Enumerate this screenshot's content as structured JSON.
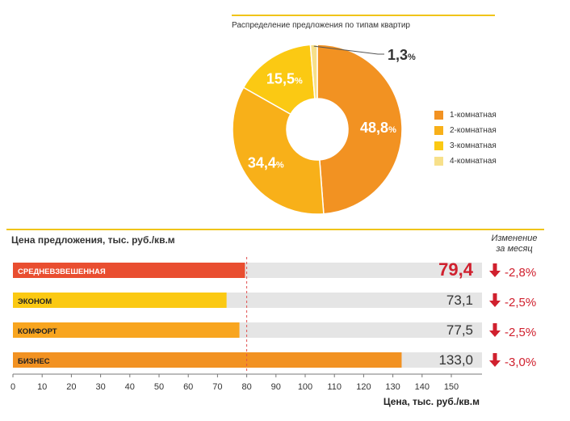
{
  "colors": {
    "accent_rule": "#f0c419",
    "track": "#e5e5e5",
    "down_arrow": "#d0202e",
    "highlight_value": "#d0202e",
    "value_text": "#333333"
  },
  "pie_section": {
    "title": "Распределение предложения по типам квартир",
    "percent_sign": "%"
  },
  "bar_section": {
    "title": "Цена предложения, тыс. руб./кв.м",
    "change_header_line1": "Изменение",
    "change_header_line2": "за месяц",
    "x_axis_label": "Цена, тыс. руб./кв.м",
    "arrow_icon": "arrow-down-icon"
  },
  "chart_data": [
    {
      "type": "pie",
      "title": "Распределение предложения по типам квартир",
      "donut": true,
      "categories": [
        "1-комнатная",
        "2-комнатная",
        "3-комнатная",
        "4-комнатная"
      ],
      "values": [
        48.8,
        34.4,
        15.5,
        1.3
      ],
      "labels": [
        "48,8",
        "34,4",
        "15,5",
        "1,3"
      ],
      "colors": [
        "#f29222",
        "#f8b019",
        "#fbc913",
        "#f7e08a"
      ],
      "legend_position": "right"
    },
    {
      "type": "bar",
      "orientation": "horizontal",
      "title": "Цена предложения, тыс. руб./кв.м",
      "xlabel": "Цена, тыс. руб./кв.м",
      "categories": [
        "СРЕДНЕВЗВЕШЕННАЯ",
        "ЭКОНОМ",
        "КОМФОРТ",
        "БИЗНЕС"
      ],
      "values": [
        79.4,
        73.1,
        77.5,
        133.0
      ],
      "value_labels": [
        "79,4",
        "73,1",
        "77,5",
        "133,0"
      ],
      "changes": [
        "-2,8%",
        "-2,5%",
        "-2,5%",
        "-3,0%"
      ],
      "colors": [
        "#e94e30",
        "#fbc913",
        "#f8a51f",
        "#f29222"
      ],
      "xlim": [
        0,
        160
      ],
      "xticks": [
        0,
        10,
        20,
        30,
        40,
        50,
        60,
        70,
        80,
        90,
        100,
        110,
        120,
        130,
        140,
        150
      ],
      "reference_line": 80,
      "grid": false
    }
  ]
}
